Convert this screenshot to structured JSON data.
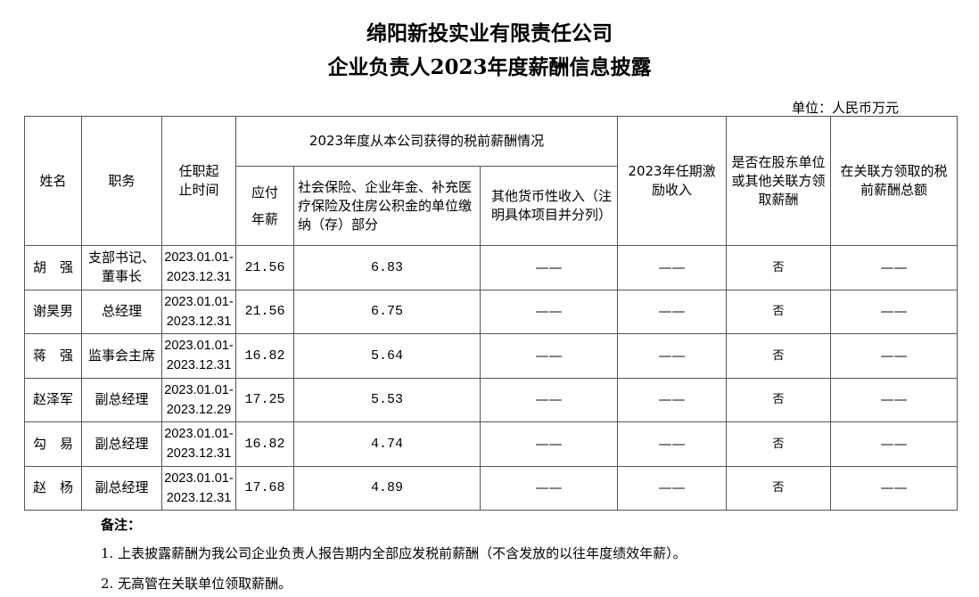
{
  "title_line1": "绵阳新投实业有限责任公司",
  "title_line2": "企业负责人2023年度薪酬信息披露",
  "unit": "单位：人民币万元",
  "headers": {
    "name": "姓名",
    "position": "职务",
    "term": "任职起止时间",
    "group": "2023年度从本公司获得的税前薪酬情况",
    "salary": "应付年薪",
    "insurance": "社会保险、企业年金、补充医疗保险及住房公积金的单位缴纳（存）部分",
    "other": "其他货币性收入（注明具体项目并分列）",
    "incentive": "2023年任期激励收入",
    "shareholder": "是否在股东单位或其他关联方领取薪酬",
    "related": "在关联方领取的税前薪酬总额"
  },
  "rows": [
    {
      "name": "胡　强",
      "position": "支部书记、董事长",
      "start": "2023.01.01-",
      "end": "2023.12.31",
      "salary": "21.56",
      "insurance": "6.83",
      "other": "——",
      "incentive": "——",
      "shareholder": "否",
      "related": "——"
    },
    {
      "name": "谢昊男",
      "position": "总经理",
      "start": "2023.01.01-",
      "end": "2023.12.31",
      "salary": "21.56",
      "insurance": "6.75",
      "other": "——",
      "incentive": "——",
      "shareholder": "否",
      "related": "——"
    },
    {
      "name": "蒋　强",
      "position": "监事会主席",
      "start": "2023.01.01-",
      "end": "2023.12.31",
      "salary": "16.82",
      "insurance": "5.64",
      "other": "——",
      "incentive": "——",
      "shareholder": "否",
      "related": "——"
    },
    {
      "name": "赵泽军",
      "position": "副总经理",
      "start": "2023.01.01-",
      "end": "2023.12.29",
      "salary": "17.25",
      "insurance": "5.53",
      "other": "——",
      "incentive": "——",
      "shareholder": "否",
      "related": "——"
    },
    {
      "name": "勾　易",
      "position": "副总经理",
      "start": "2023.01.01-",
      "end": "2023.12.31",
      "salary": "16.82",
      "insurance": "4.74",
      "other": "——",
      "incentive": "——",
      "shareholder": "否",
      "related": "——"
    },
    {
      "name": "赵　杨",
      "position": "副总经理",
      "start": "2023.01.01-",
      "end": "2023.12.31",
      "salary": "17.68",
      "insurance": "4.89",
      "other": "——",
      "incentive": "——",
      "shareholder": "否",
      "related": "——"
    }
  ],
  "notes": {
    "heading": "备注：",
    "items": [
      "1. 上表披露薪酬为我公司企业负责人报告期内全部应发税前薪酬（不含发放的以往年度绩效年薪）。",
      "2. 无高管在关联单位领取薪酬。"
    ]
  }
}
